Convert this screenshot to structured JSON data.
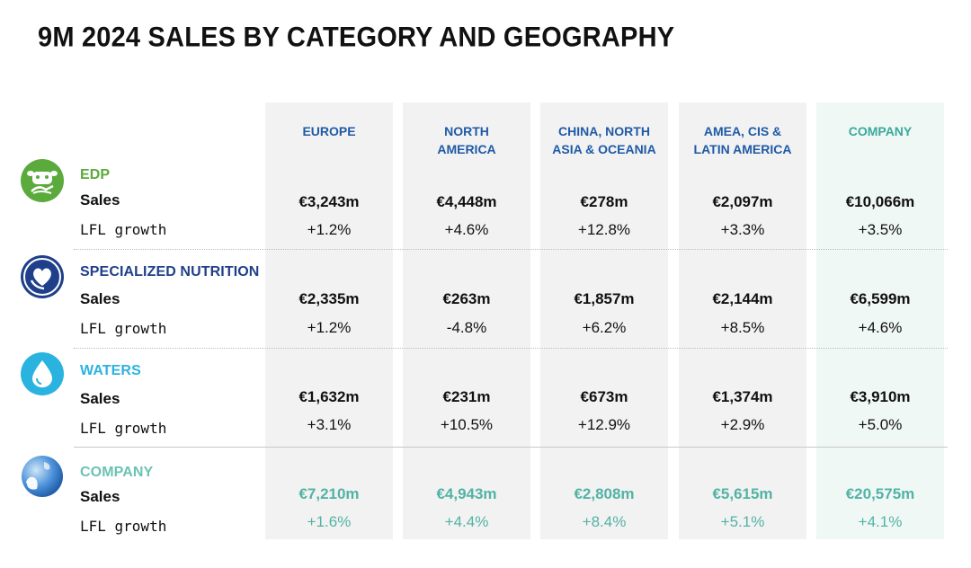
{
  "title": "9M 2024 SALES BY CATEGORY AND GEOGRAPHY",
  "columns": [
    "EUROPE",
    "NORTH\nAMERICA",
    "CHINA, NORTH\nASIA & OCEANIA",
    "AMEA, CIS &\nLATIN AMERICA",
    "COMPANY"
  ],
  "row_labels": {
    "sales": "Sales",
    "lfl": "LFL growth"
  },
  "colors": {
    "edp": "#5aaa3c",
    "specialized_nutrition": "#1f3f8a",
    "waters": "#2bb3e0",
    "company": "#6bc3b4",
    "header": "#1f5aa6",
    "header_company": "#3aa99b"
  },
  "categories": [
    {
      "name": "EDP",
      "icon": "cow-icon",
      "sales": [
        "€3,243m",
        "€4,448m",
        "€278m",
        "€2,097m",
        "€10,066m"
      ],
      "lfl": [
        "+1.2%",
        "+4.6%",
        "+12.8%",
        "+3.3%",
        "+3.5%"
      ]
    },
    {
      "name": "SPECIALIZED NUTRITION",
      "icon": "heart-hand-icon",
      "sales": [
        "€2,335m",
        "€263m",
        "€1,857m",
        "€2,144m",
        "€6,599m"
      ],
      "lfl": [
        "+1.2%",
        "-4.8%",
        "+6.2%",
        "+8.5%",
        "+4.6%"
      ]
    },
    {
      "name": "WATERS",
      "icon": "water-drop-icon",
      "sales": [
        "€1,632m",
        "€231m",
        "€673m",
        "€1,374m",
        "€3,910m"
      ],
      "lfl": [
        "+3.1%",
        "+10.5%",
        "+12.9%",
        "+2.9%",
        "+5.0%"
      ]
    },
    {
      "name": "COMPANY",
      "icon": "globe-icon",
      "sales": [
        "€7,210m",
        "€4,943m",
        "€2,808m",
        "€5,615m",
        "€20,575m"
      ],
      "lfl": [
        "+1.6%",
        "+4.4%",
        "+8.4%",
        "+5.1%",
        "+4.1%"
      ]
    }
  ]
}
